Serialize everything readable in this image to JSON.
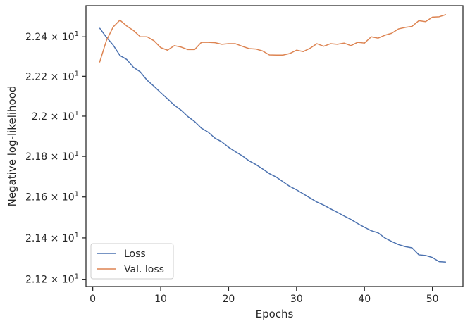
{
  "chart_data": {
    "type": "line",
    "xlabel": "Epochs",
    "ylabel": "Negative log-likelihood",
    "xlim": [
      -1,
      54.5
    ],
    "ylim": [
      21.165,
      22.559
    ],
    "yscale": "log",
    "grid": false,
    "legend_position": "lower-left",
    "x_ticks": [
      0,
      10,
      20,
      30,
      40,
      50
    ],
    "y_ticks": [
      {
        "value": 21.2,
        "mantissa": "2.12",
        "base": "10",
        "exp": "1"
      },
      {
        "value": 21.4,
        "mantissa": "2.14",
        "base": "10",
        "exp": "1"
      },
      {
        "value": 21.6,
        "mantissa": "2.16",
        "base": "10",
        "exp": "1"
      },
      {
        "value": 21.8,
        "mantissa": "2.18",
        "base": "10",
        "exp": "1"
      },
      {
        "value": 22.0,
        "mantissa": "2.2",
        "base": "10",
        "exp": "1"
      },
      {
        "value": 22.2,
        "mantissa": "2.22",
        "base": "10",
        "exp": "1"
      },
      {
        "value": 22.4,
        "mantissa": "2.24",
        "base": "10",
        "exp": "1"
      }
    ],
    "x": [
      1,
      2,
      3,
      4,
      5,
      6,
      7,
      8,
      9,
      10,
      11,
      12,
      13,
      14,
      15,
      16,
      17,
      18,
      19,
      20,
      21,
      22,
      23,
      24,
      25,
      26,
      27,
      28,
      29,
      30,
      31,
      32,
      33,
      34,
      35,
      36,
      37,
      38,
      39,
      40,
      41,
      42,
      43,
      44,
      45,
      46,
      47,
      48,
      49,
      50,
      51,
      52
    ],
    "series": [
      {
        "name": "Loss",
        "color": "#4c72b0",
        "values": [
          22.445,
          22.398,
          22.358,
          22.305,
          22.285,
          22.245,
          22.222,
          22.18,
          22.15,
          22.118,
          22.087,
          22.055,
          22.03,
          21.998,
          21.973,
          21.94,
          21.92,
          21.89,
          21.872,
          21.845,
          21.823,
          21.803,
          21.778,
          21.76,
          21.738,
          21.715,
          21.698,
          21.675,
          21.652,
          21.635,
          21.615,
          21.595,
          21.575,
          21.56,
          21.542,
          21.525,
          21.507,
          21.49,
          21.47,
          21.452,
          21.435,
          21.425,
          21.4,
          21.383,
          21.368,
          21.358,
          21.352,
          21.318,
          21.315,
          21.305,
          21.285,
          21.283
        ]
      },
      {
        "name": "Val. loss",
        "color": "#dd8452",
        "values": [
          22.27,
          22.38,
          22.45,
          22.485,
          22.455,
          22.432,
          22.4,
          22.4,
          22.38,
          22.345,
          22.332,
          22.355,
          22.348,
          22.335,
          22.335,
          22.372,
          22.372,
          22.37,
          22.362,
          22.365,
          22.365,
          22.352,
          22.34,
          22.338,
          22.328,
          22.308,
          22.307,
          22.307,
          22.315,
          22.332,
          22.325,
          22.342,
          22.365,
          22.352,
          22.365,
          22.362,
          22.368,
          22.355,
          22.372,
          22.368,
          22.4,
          22.393,
          22.408,
          22.418,
          22.44,
          22.448,
          22.453,
          22.482,
          22.477,
          22.5,
          22.502,
          22.513
        ]
      }
    ]
  }
}
